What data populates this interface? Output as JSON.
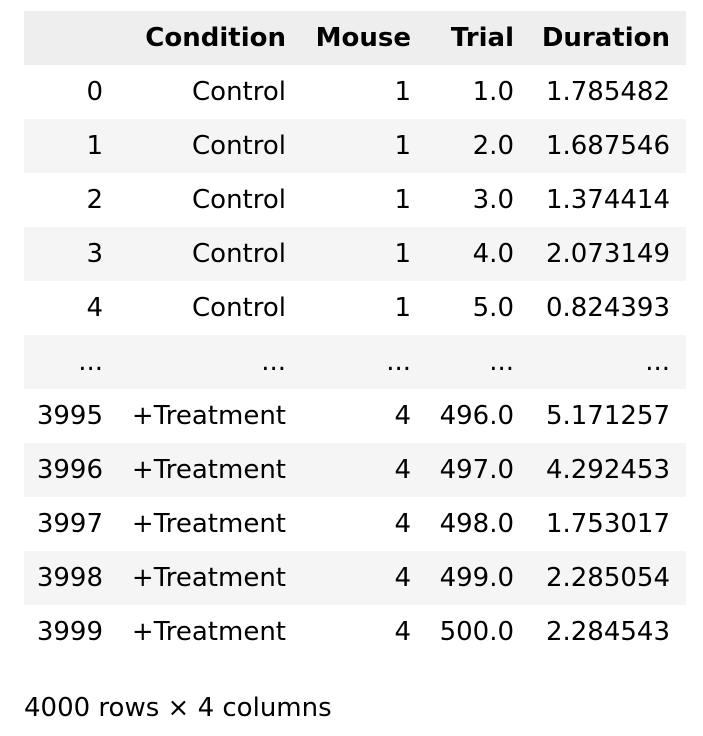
{
  "table": {
    "columns": [
      "",
      "Condition",
      "Mouse",
      "Trial",
      "Duration"
    ],
    "rows": [
      [
        "0",
        "Control",
        "1",
        "1.0",
        "1.785482"
      ],
      [
        "1",
        "Control",
        "1",
        "2.0",
        "1.687546"
      ],
      [
        "2",
        "Control",
        "1",
        "3.0",
        "1.374414"
      ],
      [
        "3",
        "Control",
        "1",
        "4.0",
        "2.073149"
      ],
      [
        "4",
        "Control",
        "1",
        "5.0",
        "0.824393"
      ],
      [
        "...",
        "...",
        "...",
        "...",
        "..."
      ],
      [
        "3995",
        "+Treatment",
        "4",
        "496.0",
        "5.171257"
      ],
      [
        "3996",
        "+Treatment",
        "4",
        "497.0",
        "4.292453"
      ],
      [
        "3997",
        "+Treatment",
        "4",
        "498.0",
        "1.753017"
      ],
      [
        "3998",
        "+Treatment",
        "4",
        "499.0",
        "2.285054"
      ],
      [
        "3999",
        "+Treatment",
        "4",
        "500.0",
        "2.284543"
      ]
    ]
  },
  "footer": {
    "shape_text": "4000 rows × 4 columns"
  },
  "colors": {
    "header_background": "#eeeeee",
    "stripe_background": "#f5f5f5",
    "text": "#000000"
  }
}
